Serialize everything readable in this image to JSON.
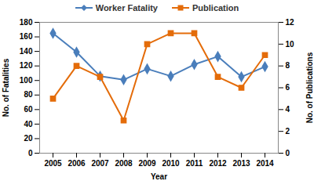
{
  "chart_data": {
    "type": "line",
    "x_label": "Year",
    "y_label": "No. of Fatalities",
    "y2_label": "No. of Publications",
    "categories": [
      "2005",
      "2006",
      "2007",
      "2008",
      "2009",
      "2010",
      "2011",
      "2012",
      "2013",
      "2014"
    ],
    "series": [
      {
        "name": "Worker Fatality",
        "color": "#4A7EBB",
        "marker": "diamond",
        "values": [
          165,
          139,
          106,
          101,
          116,
          106,
          122,
          133,
          105,
          119
        ]
      },
      {
        "name": "Publication",
        "color": "#E46C0A",
        "marker": "square",
        "axis": "y2",
        "values": [
          5,
          8,
          7,
          3,
          10,
          11,
          11,
          7,
          6,
          9
        ]
      }
    ],
    "ylim": [
      0,
      180
    ],
    "yticks": [
      0,
      20,
      40,
      60,
      80,
      100,
      120,
      140,
      160,
      180
    ],
    "y2lim": [
      0,
      12
    ],
    "y2ticks": [
      0,
      2,
      4,
      6,
      8,
      10,
      12
    ],
    "legend": "top",
    "grid": false
  }
}
